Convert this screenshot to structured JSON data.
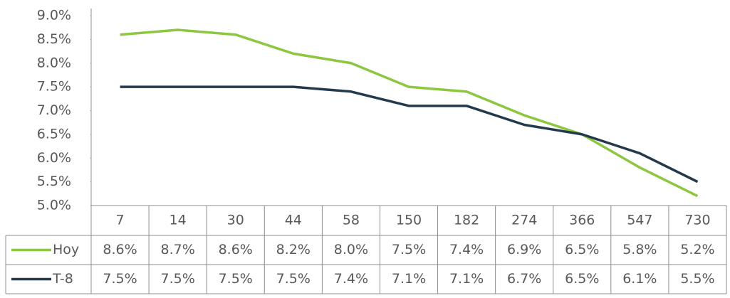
{
  "chart_data": {
    "type": "line",
    "categories": [
      "7",
      "14",
      "30",
      "44",
      "58",
      "150",
      "182",
      "274",
      "366",
      "547",
      "730"
    ],
    "series": [
      {
        "name": "Hoy",
        "color": "#8dc63f",
        "values": [
          8.6,
          8.7,
          8.6,
          8.2,
          8.0,
          7.5,
          7.4,
          6.9,
          6.5,
          5.8,
          5.2
        ],
        "value_labels": [
          "8.6%",
          "8.7%",
          "8.6%",
          "8.2%",
          "8.0%",
          "7.5%",
          "7.4%",
          "6.9%",
          "6.5%",
          "5.8%",
          "5.2%"
        ]
      },
      {
        "name": "T-8",
        "color": "#233a4d",
        "values": [
          7.5,
          7.5,
          7.5,
          7.5,
          7.4,
          7.1,
          7.1,
          6.7,
          6.5,
          6.1,
          5.5
        ],
        "value_labels": [
          "7.5%",
          "7.5%",
          "7.5%",
          "7.5%",
          "7.4%",
          "7.1%",
          "7.1%",
          "6.7%",
          "6.5%",
          "6.1%",
          "5.5%"
        ]
      }
    ],
    "ylim": [
      5.0,
      9.0
    ],
    "yticks": [
      {
        "value": 5.0,
        "label": "5.0%"
      },
      {
        "value": 5.5,
        "label": "5.5%"
      },
      {
        "value": 6.0,
        "label": "6.0%"
      },
      {
        "value": 6.5,
        "label": "6.5%"
      },
      {
        "value": 7.0,
        "label": "7.0%"
      },
      {
        "value": 7.5,
        "label": "7.5%"
      },
      {
        "value": 8.0,
        "label": "8.0%"
      },
      {
        "value": 8.5,
        "label": "8.5%"
      },
      {
        "value": 9.0,
        "label": "9.0%"
      }
    ],
    "grid": false
  }
}
